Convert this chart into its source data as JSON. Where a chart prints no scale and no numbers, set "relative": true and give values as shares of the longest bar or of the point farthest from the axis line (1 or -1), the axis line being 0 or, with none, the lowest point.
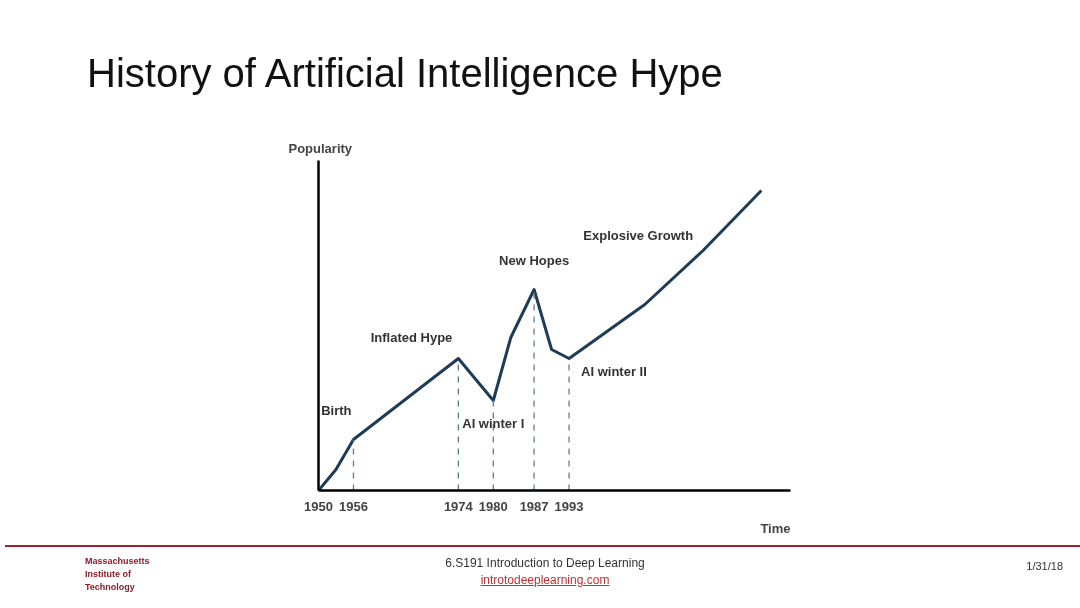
{
  "chart_data": {
    "type": "line",
    "title": "History of Artificial Intelligence Hype",
    "xlabel": "Time",
    "ylabel": "Popularity",
    "relative": true,
    "x": [
      1950,
      1953,
      1956,
      1962,
      1968,
      1974,
      1977,
      1980,
      1983,
      1987,
      1990,
      1993,
      2006,
      2016,
      2026
    ],
    "series": [
      {
        "color": "#1f3b57",
        "values": [
          0,
          0.07,
          0.17,
          0.26,
          0.35,
          0.44,
          0.37,
          0.3,
          0.51,
          0.67,
          0.47,
          0.44,
          0.62,
          0.8,
          1
        ]
      }
    ],
    "xlim": [
      1950,
      2031
    ],
    "xticks": [
      1950,
      1956,
      1974,
      1980,
      1987,
      1993
    ],
    "ref_lines": [
      {
        "axis": "x",
        "value": 1956,
        "line_style": "dashed",
        "color": "#5a7d8c"
      },
      {
        "axis": "x",
        "value": 1974,
        "line_style": "dashed",
        "color": "#5a7d8c"
      },
      {
        "axis": "x",
        "value": 1980,
        "line_style": "dashed",
        "color": "#5a7d8c"
      },
      {
        "axis": "x",
        "value": 1987,
        "line_style": "dashed",
        "color": "#5a7d8c"
      },
      {
        "axis": "x",
        "value": 1993,
        "line_style": "dashed",
        "color": "#5a7d8c"
      }
    ],
    "annotations": [
      {
        "text": "Birth",
        "x": 1956,
        "y": 0.17
      },
      {
        "text": "Inflated Hype",
        "x": 1974,
        "y": 0.44
      },
      {
        "text": "AI winter I",
        "x": 1980,
        "y": 0.3
      },
      {
        "text": "New Hopes",
        "x": 1987,
        "y": 0.67
      },
      {
        "text": "AI winter II",
        "x": 1993,
        "y": 0.44
      },
      {
        "text": "Explosive Growth",
        "x": 2016,
        "y": 0.8
      },
      "Massachusetts Institute of Technology",
      "6.S191 Introduction to Deep Learning",
      "introtodeeplearning.com",
      "1/31/18"
    ],
    "grid": false,
    "marker": "none",
    "line_style": "solid"
  }
}
